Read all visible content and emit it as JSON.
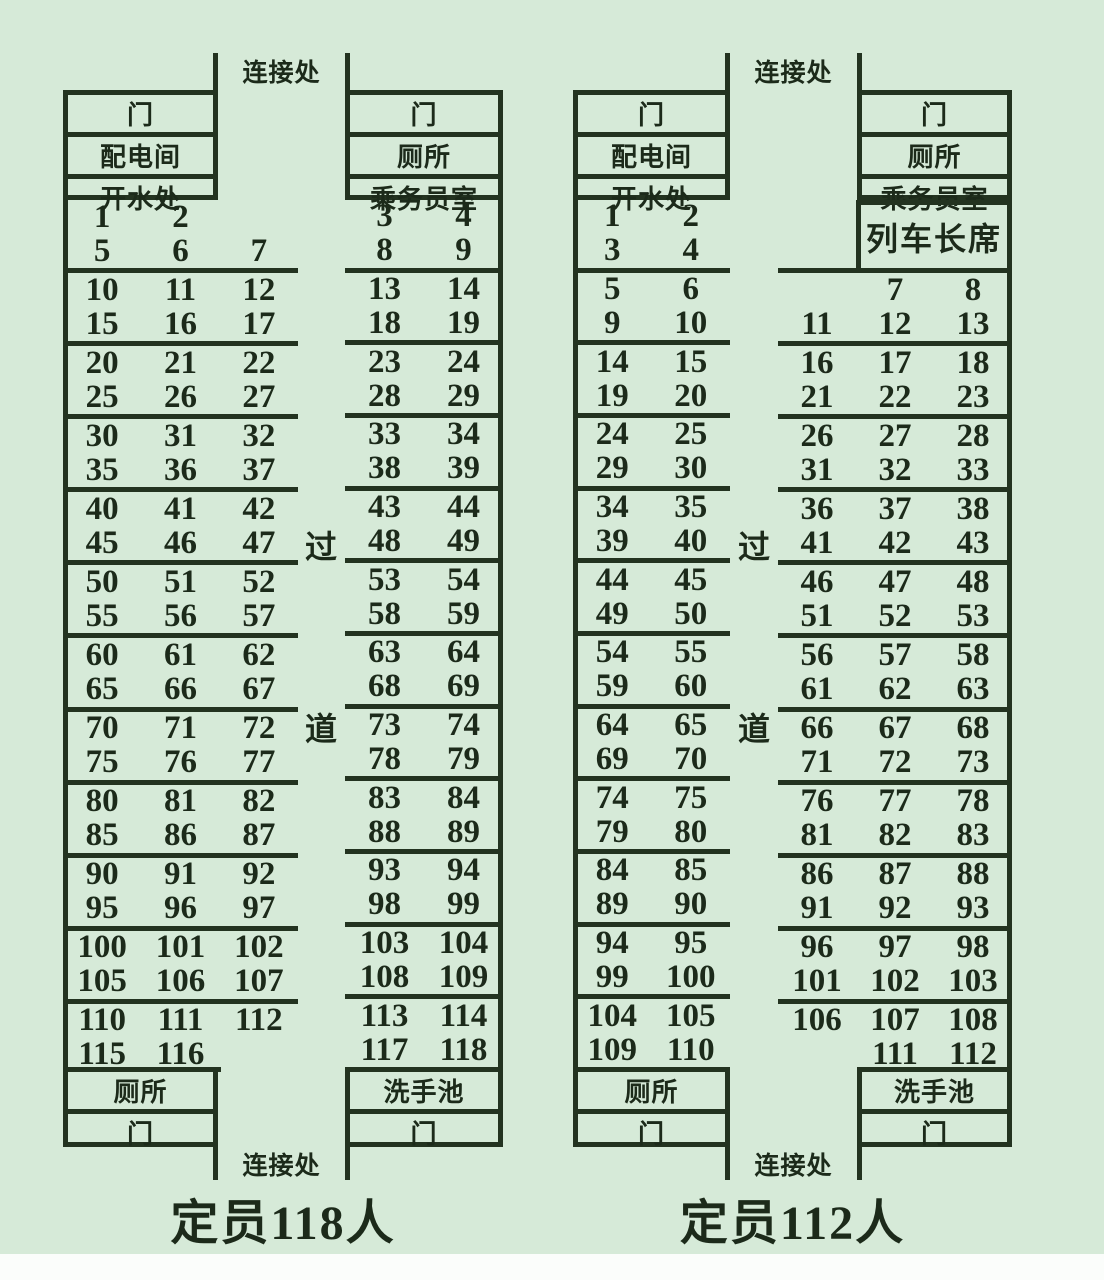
{
  "colors": {
    "background": "#d6ead8",
    "line": "#233320",
    "text": "#1c2a1a",
    "bottom_strip": "#fbfdfb"
  },
  "cars": [
    {
      "capacity_label": "定员118人",
      "connector_top": "连接处",
      "connector_bottom": "连接处",
      "aisle_char_upper": "过",
      "aisle_char_lower": "道",
      "left_tower_top": [
        "门",
        "配电间",
        "开水处"
      ],
      "right_tower_top": [
        "门",
        "厕所",
        "乘务员室"
      ],
      "left_tower_bottom": [
        "厕所",
        "门"
      ],
      "right_tower_bottom": [
        "洗手池",
        "门"
      ],
      "conductor_box": null,
      "left_block": {
        "groups": [
          [
            [
              "1",
              "2",
              ""
            ],
            [
              "5",
              "6",
              "7"
            ]
          ],
          [
            [
              "10",
              "11",
              "12"
            ],
            [
              "15",
              "16",
              "17"
            ]
          ],
          [
            [
              "20",
              "21",
              "22"
            ],
            [
              "25",
              "26",
              "27"
            ]
          ],
          [
            [
              "30",
              "31",
              "32"
            ],
            [
              "35",
              "36",
              "37"
            ]
          ],
          [
            [
              "40",
              "41",
              "42"
            ],
            [
              "45",
              "46",
              "47"
            ]
          ],
          [
            [
              "50",
              "51",
              "52"
            ],
            [
              "55",
              "56",
              "57"
            ]
          ],
          [
            [
              "60",
              "61",
              "62"
            ],
            [
              "65",
              "66",
              "67"
            ]
          ],
          [
            [
              "70",
              "71",
              "72"
            ],
            [
              "75",
              "76",
              "77"
            ]
          ],
          [
            [
              "80",
              "81",
              "82"
            ],
            [
              "85",
              "86",
              "87"
            ]
          ],
          [
            [
              "90",
              "91",
              "92"
            ],
            [
              "95",
              "96",
              "97"
            ]
          ],
          [
            [
              "100",
              "101",
              "102"
            ],
            [
              "105",
              "106",
              "107"
            ]
          ],
          [
            [
              "110",
              "111",
              "112"
            ],
            [
              "115",
              "116",
              ""
            ]
          ]
        ]
      },
      "right_block": {
        "groups": [
          [
            [
              "3",
              "4"
            ],
            [
              "8",
              "9"
            ]
          ],
          [
            [
              "13",
              "14"
            ],
            [
              "18",
              "19"
            ]
          ],
          [
            [
              "23",
              "24"
            ],
            [
              "28",
              "29"
            ]
          ],
          [
            [
              "33",
              "34"
            ],
            [
              "38",
              "39"
            ]
          ],
          [
            [
              "43",
              "44"
            ],
            [
              "48",
              "49"
            ]
          ],
          [
            [
              "53",
              "54"
            ],
            [
              "58",
              "59"
            ]
          ],
          [
            [
              "63",
              "64"
            ],
            [
              "68",
              "69"
            ]
          ],
          [
            [
              "73",
              "74"
            ],
            [
              "78",
              "79"
            ]
          ],
          [
            [
              "83",
              "84"
            ],
            [
              "88",
              "89"
            ]
          ],
          [
            [
              "93",
              "94"
            ],
            [
              "98",
              "99"
            ]
          ],
          [
            [
              "103",
              "104"
            ],
            [
              "108",
              "109"
            ]
          ],
          [
            [
              "113",
              "114"
            ],
            [
              "117",
              "118"
            ]
          ]
        ]
      }
    },
    {
      "capacity_label": "定员112人",
      "connector_top": "连接处",
      "connector_bottom": "连接处",
      "aisle_char_upper": "过",
      "aisle_char_lower": "道",
      "left_tower_top": [
        "门",
        "配电间",
        "开水处"
      ],
      "right_tower_top": [
        "门",
        "厕所",
        "乘务员室"
      ],
      "left_tower_bottom": [
        "厕所",
        "门"
      ],
      "right_tower_bottom": [
        "洗手池",
        "门"
      ],
      "conductor_box": "列车长席",
      "left_block": {
        "groups": [
          [
            [
              "1",
              "2"
            ],
            [
              "3",
              "4"
            ]
          ],
          [
            [
              "5",
              "6"
            ],
            [
              "9",
              "10"
            ]
          ],
          [
            [
              "14",
              "15"
            ],
            [
              "19",
              "20"
            ]
          ],
          [
            [
              "24",
              "25"
            ],
            [
              "29",
              "30"
            ]
          ],
          [
            [
              "34",
              "35"
            ],
            [
              "39",
              "40"
            ]
          ],
          [
            [
              "44",
              "45"
            ],
            [
              "49",
              "50"
            ]
          ],
          [
            [
              "54",
              "55"
            ],
            [
              "59",
              "60"
            ]
          ],
          [
            [
              "64",
              "65"
            ],
            [
              "69",
              "70"
            ]
          ],
          [
            [
              "74",
              "75"
            ],
            [
              "79",
              "80"
            ]
          ],
          [
            [
              "84",
              "85"
            ],
            [
              "89",
              "90"
            ]
          ],
          [
            [
              "94",
              "95"
            ],
            [
              "99",
              "100"
            ]
          ],
          [
            [
              "104",
              "105"
            ],
            [
              "109",
              "110"
            ]
          ]
        ]
      },
      "right_block": {
        "groups": [
          null,
          [
            [
              "",
              "7",
              "8"
            ],
            [
              "11",
              "12",
              "13"
            ]
          ],
          [
            [
              "16",
              "17",
              "18"
            ],
            [
              "21",
              "22",
              "23"
            ]
          ],
          [
            [
              "26",
              "27",
              "28"
            ],
            [
              "31",
              "32",
              "33"
            ]
          ],
          [
            [
              "36",
              "37",
              "38"
            ],
            [
              "41",
              "42",
              "43"
            ]
          ],
          [
            [
              "46",
              "47",
              "48"
            ],
            [
              "51",
              "52",
              "53"
            ]
          ],
          [
            [
              "56",
              "57",
              "58"
            ],
            [
              "61",
              "62",
              "63"
            ]
          ],
          [
            [
              "66",
              "67",
              "68"
            ],
            [
              "71",
              "72",
              "73"
            ]
          ],
          [
            [
              "76",
              "77",
              "78"
            ],
            [
              "81",
              "82",
              "83"
            ]
          ],
          [
            [
              "86",
              "87",
              "88"
            ],
            [
              "91",
              "92",
              "93"
            ]
          ],
          [
            [
              "96",
              "97",
              "98"
            ],
            [
              "101",
              "102",
              "103"
            ]
          ],
          [
            [
              "106",
              "107",
              "108"
            ],
            [
              "",
              "111",
              "112"
            ]
          ]
        ]
      }
    }
  ]
}
